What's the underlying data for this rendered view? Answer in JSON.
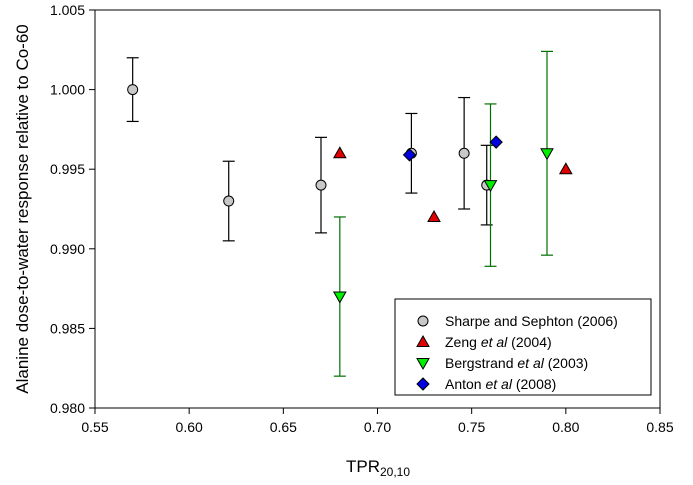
{
  "chart_data": {
    "type": "scatter",
    "xlabel": {
      "main": "TPR",
      "sub": "20,10"
    },
    "ylabel": "Alanine dose-to-water response relative to Co-60",
    "xlim": [
      0.55,
      0.85
    ],
    "ylim": [
      0.98,
      1.005
    ],
    "xticks": [
      "0.55",
      "0.60",
      "0.65",
      "0.70",
      "0.75",
      "0.80",
      "0.85"
    ],
    "yticks": [
      "0.980",
      "0.985",
      "0.990",
      "0.995",
      "1.000",
      "1.005"
    ],
    "grid": false,
    "legend_position": "bottom-right",
    "series": [
      {
        "key": "sharpe",
        "legend": [
          {
            "text": "Sharpe and Sephton (2006)",
            "italic": false
          }
        ],
        "marker": "circle",
        "color": "#c8c8c8",
        "error_color": "#000000",
        "points": [
          {
            "x": 0.57,
            "y": 1.0,
            "err": 0.002
          },
          {
            "x": 0.621,
            "y": 0.993,
            "err": 0.0025
          },
          {
            "x": 0.67,
            "y": 0.994,
            "err": 0.003
          },
          {
            "x": 0.718,
            "y": 0.996,
            "err": 0.0025
          },
          {
            "x": 0.746,
            "y": 0.996,
            "err": 0.0035
          },
          {
            "x": 0.758,
            "y": 0.994,
            "err": 0.0025
          }
        ]
      },
      {
        "key": "zeng",
        "legend": [
          {
            "text": "Zeng ",
            "italic": false
          },
          {
            "text": "et al",
            "italic": true
          },
          {
            "text": " (2004)",
            "italic": false
          }
        ],
        "marker": "triangle-up",
        "color": "#e00000",
        "error_color": "#e00000",
        "points": [
          {
            "x": 0.68,
            "y": 0.996,
            "err": 0
          },
          {
            "x": 0.73,
            "y": 0.992,
            "err": 0
          },
          {
            "x": 0.8,
            "y": 0.995,
            "err": 0
          }
        ]
      },
      {
        "key": "bergstrand",
        "legend": [
          {
            "text": "Bergstrand ",
            "italic": false
          },
          {
            "text": "et al",
            "italic": true
          },
          {
            "text": " (2003)",
            "italic": false
          }
        ],
        "marker": "triangle-down",
        "color": "#00ee00",
        "error_color": "#007000",
        "points": [
          {
            "x": 0.68,
            "y": 0.987,
            "err": 0.005
          },
          {
            "x": 0.76,
            "y": 0.994,
            "err": 0.0051
          },
          {
            "x": 0.79,
            "y": 0.996,
            "err": 0.0064
          }
        ]
      },
      {
        "key": "anton",
        "legend": [
          {
            "text": "Anton ",
            "italic": false
          },
          {
            "text": "et al",
            "italic": true
          },
          {
            "text": " (2008)",
            "italic": false
          }
        ],
        "marker": "diamond",
        "color": "#0000e0",
        "error_color": "#0000e0",
        "points": [
          {
            "x": 0.717,
            "y": 0.9959,
            "err": 0
          },
          {
            "x": 0.763,
            "y": 0.9967,
            "err": 0
          }
        ]
      }
    ]
  }
}
